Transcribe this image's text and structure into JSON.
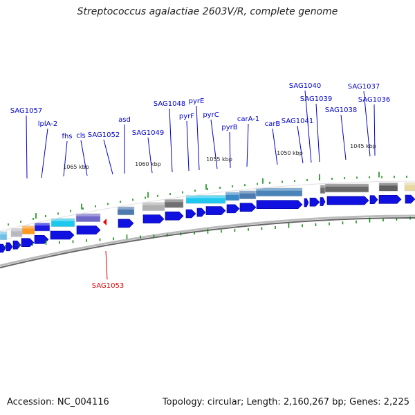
{
  "title": "Streptococcus agalactiae 2603V/R, complete genome",
  "footer": {
    "accession": "Accession: NC_004116",
    "summary": "Topology: circular; Length: 2,160,267 bp; Genes: 2,225"
  },
  "colors": {
    "gene_label": "#0000cc",
    "highlight_label": "#dd0000",
    "forward_arrow": "#1010e0",
    "backbone": "#666666",
    "tick": "#008800"
  },
  "scale_labels": [
    "1065 kbp",
    "1060 kbp",
    "1055 kbp",
    "1050 kbp",
    "1045 kbp"
  ],
  "gene_labels": [
    "SAG1057",
    "lplA-2",
    "fhs",
    "cls",
    "SAG1052",
    "asd",
    "SAG1049",
    "SAG1048",
    "pyrF",
    "pyrE",
    "pyrC",
    "pyrB",
    "carA-1",
    "carB",
    "SAG1041",
    "SAG1040",
    "SAG1039",
    "SAG1038",
    "SAG1037",
    "SAG1036"
  ],
  "highlight_label": "SAG1053"
}
